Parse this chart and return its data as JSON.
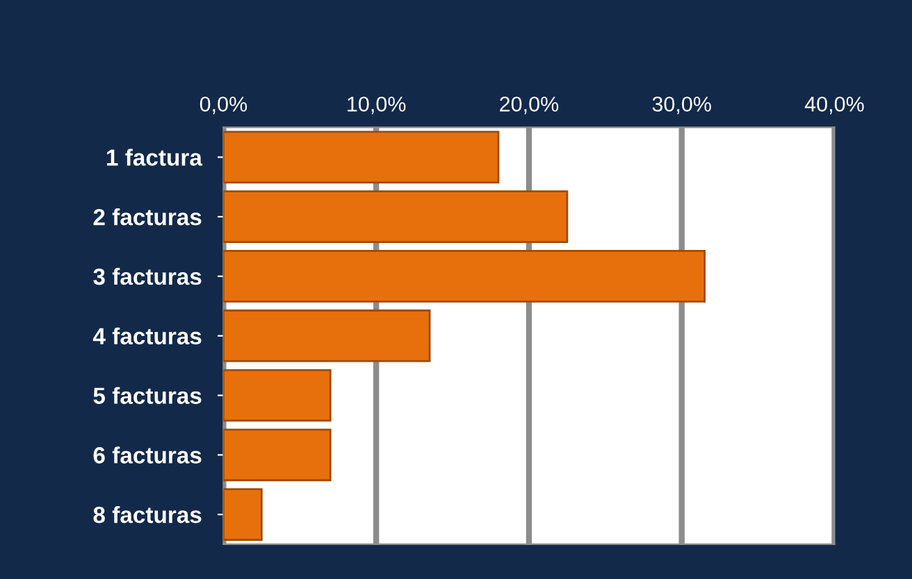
{
  "chart_data": {
    "type": "bar",
    "orientation": "horizontal",
    "categories": [
      "1 factura",
      "2 facturas",
      "3 facturas",
      "4 facturas",
      "5 facturas",
      "6 facturas",
      "8 facturas"
    ],
    "values": [
      18,
      22.5,
      31.5,
      13.5,
      7,
      7,
      2.5
    ],
    "color": "#e8700c",
    "xlim": [
      0,
      40
    ],
    "xticks": [
      {
        "value": 0,
        "label": "0,0%"
      },
      {
        "value": 10,
        "label": "10,0%"
      },
      {
        "value": 20,
        "label": "20,0%"
      },
      {
        "value": 30,
        "label": "30,0%"
      },
      {
        "value": 40,
        "label": "40,0%"
      }
    ],
    "grid": "x",
    "legend": false
  }
}
